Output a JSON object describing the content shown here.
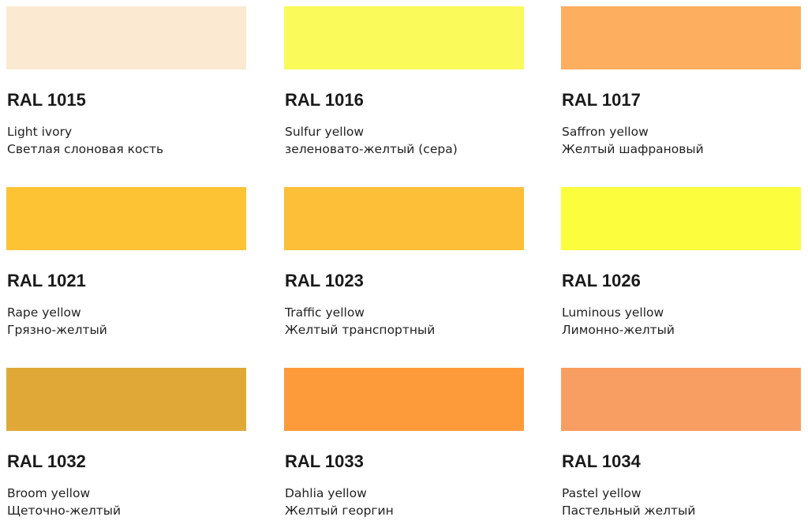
{
  "swatches": [
    {
      "code": "RAL 1015",
      "name_en": "Light ivory",
      "name_ru": "Светлая слоновая кость",
      "color": "#fbe9d2"
    },
    {
      "code": "RAL 1016",
      "name_en": "Sulfur yellow",
      "name_ru": "зеленовато-желтый (сера)",
      "color": "#fafa5a"
    },
    {
      "code": "RAL 1017",
      "name_en": "Saffron yellow",
      "name_ru": "Желтый шафрановый",
      "color": "#fdae5e"
    },
    {
      "code": "RAL 1021",
      "name_en": "Rape yellow",
      "name_ru": "Грязно-желтый",
      "color": "#fdc334"
    },
    {
      "code": "RAL 1023",
      "name_en": "Traffic yellow",
      "name_ru": "Желтый транспортный",
      "color": "#fdbe38"
    },
    {
      "code": "RAL 1026",
      "name_en": "Luminous yellow",
      "name_ru": "Лимонно-желтый",
      "color": "#fcfd3c"
    },
    {
      "code": "RAL 1032",
      "name_en": "Broom yellow",
      "name_ru": "Щеточно-желтый",
      "color": "#e0a937"
    },
    {
      "code": "RAL 1033",
      "name_en": "Dahlia yellow",
      "name_ru": "Желтый георгин",
      "color": "#fd9a3a"
    },
    {
      "code": "RAL 1034",
      "name_en": "Pastel yellow",
      "name_ru": "Пастельный желтый",
      "color": "#f99e62"
    }
  ]
}
